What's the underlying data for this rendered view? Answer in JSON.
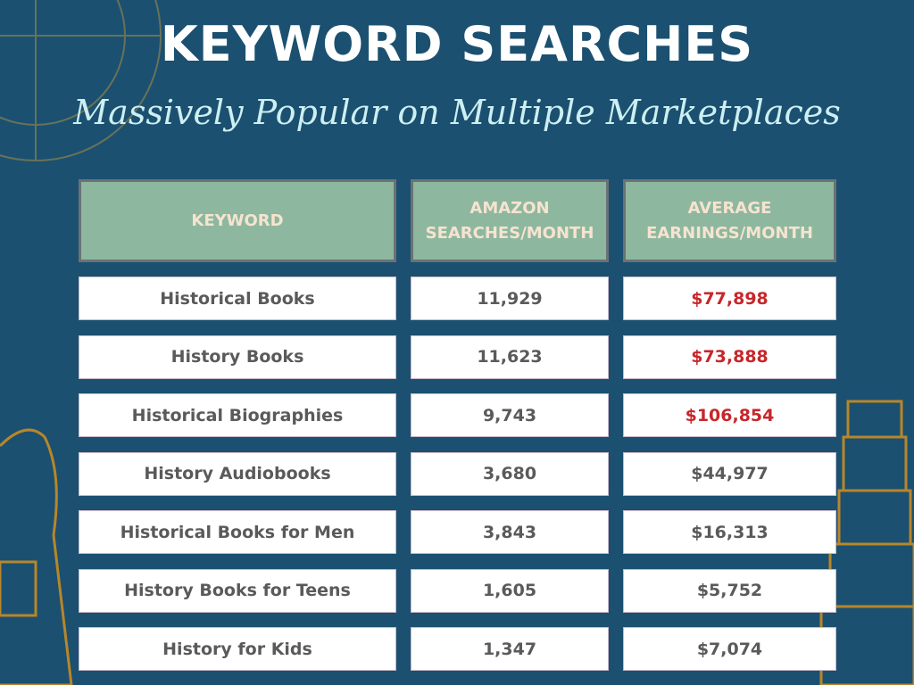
{
  "header": {
    "title": "KEYWORD SEARCHES",
    "subtitle": "Massively Popular on Multiple Marketplaces"
  },
  "table": {
    "columns": [
      "KEYWORD",
      "AMAZON SEARCHES/MONTH",
      "AVERAGE EARNINGS/MONTH"
    ],
    "rows": [
      [
        "Historical Books",
        "11,929",
        "$77,898"
      ],
      [
        "History Books",
        "11,623",
        "$73,888"
      ],
      [
        "Historical Biographies",
        "9,743",
        "$106,854"
      ],
      [
        "History Audiobooks",
        "3,680",
        "$44,977"
      ],
      [
        "Historical Books for Men",
        "3,843",
        "$16,313"
      ],
      [
        "History Books for Teens",
        "1,605",
        "$5,752"
      ],
      [
        "History for Kids",
        "1,347",
        "$7,074"
      ]
    ],
    "earnings_colors": [
      "#c8262a",
      "#c8262a",
      "#c8262a",
      "#5a5a5a",
      "#5a5a5a",
      "#5a5a5a",
      "#5a5a5a"
    ]
  }
}
